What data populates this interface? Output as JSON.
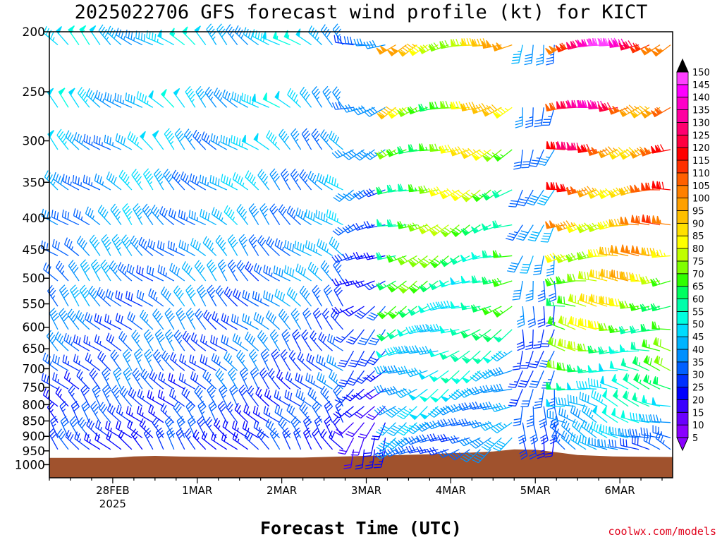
{
  "chart_data": {
    "type": "wind_barbs",
    "title": "2025022706 GFS forecast wind profile (kt) for KICT",
    "xlabel": "Forecast Time (UTC)",
    "credit": "coolwx.com/models",
    "units": "kt",
    "y_axis": {
      "scale": "log-pressure",
      "inverted": true,
      "ticks": [
        200,
        250,
        300,
        350,
        400,
        450,
        500,
        550,
        600,
        650,
        700,
        750,
        800,
        850,
        900,
        950,
        1000
      ],
      "range": [
        200,
        1050
      ]
    },
    "x_axis": {
      "ticks": [
        {
          "label": "28FEB",
          "sublabel": "2025",
          "hours_after_init": 18
        },
        {
          "label": "1MAR",
          "sublabel": "",
          "hours_after_init": 42
        },
        {
          "label": "2MAR",
          "sublabel": "",
          "hours_after_init": 66
        },
        {
          "label": "3MAR",
          "sublabel": "",
          "hours_after_init": 90
        },
        {
          "label": "4MAR",
          "sublabel": "",
          "hours_after_init": 114
        },
        {
          "label": "5MAR",
          "sublabel": "",
          "hours_after_init": 138
        },
        {
          "label": "6MAR",
          "sublabel": "",
          "hours_after_init": 162
        }
      ],
      "range_hours": [
        0,
        177
      ]
    },
    "colorbar": {
      "levels": [
        5,
        10,
        15,
        20,
        25,
        30,
        35,
        40,
        45,
        50,
        55,
        60,
        65,
        70,
        75,
        80,
        85,
        90,
        95,
        100,
        105,
        110,
        115,
        120,
        125,
        130,
        135,
        140,
        145,
        150
      ],
      "colors": [
        "#8a00ff",
        "#6a00ff",
        "#3a00ff",
        "#0000ff",
        "#0030ff",
        "#0060ff",
        "#0090ff",
        "#00b4ff",
        "#00dcff",
        "#00ffe0",
        "#00ffaa",
        "#00ff60",
        "#30ff00",
        "#80ff00",
        "#c0ff00",
        "#ffff00",
        "#ffe000",
        "#ffc000",
        "#ffa000",
        "#ff8000",
        "#ff6000",
        "#ff3000",
        "#ff0000",
        "#ff0040",
        "#ff0070",
        "#ff00a0",
        "#ff00c8",
        "#ff00ff",
        "#ff40ff",
        "#ff80ff"
      ]
    },
    "terrain": {
      "color": "#a0522d",
      "surface_pressure": [
        {
          "h": 0,
          "p": 975
        },
        {
          "h": 18,
          "p": 975
        },
        {
          "h": 24,
          "p": 970
        },
        {
          "h": 30,
          "p": 968
        },
        {
          "h": 36,
          "p": 970
        },
        {
          "h": 48,
          "p": 972
        },
        {
          "h": 60,
          "p": 974
        },
        {
          "h": 72,
          "p": 974
        },
        {
          "h": 84,
          "p": 970
        },
        {
          "h": 96,
          "p": 966
        },
        {
          "h": 108,
          "p": 962
        },
        {
          "h": 114,
          "p": 958
        },
        {
          "h": 120,
          "p": 956
        },
        {
          "h": 126,
          "p": 952
        },
        {
          "h": 132,
          "p": 945
        },
        {
          "h": 138,
          "p": 946
        },
        {
          "h": 144,
          "p": 955
        },
        {
          "h": 150,
          "p": 965
        },
        {
          "h": 160,
          "p": 970
        },
        {
          "h": 177,
          "p": 972
        }
      ]
    },
    "wind_levels": [
      210,
      265,
      310,
      360,
      410,
      460,
      505,
      555,
      605,
      655,
      705,
      755,
      805,
      855,
      905,
      945,
      975
    ],
    "time_step_hours": 3,
    "regimes": [
      {
        "h0": 0,
        "h1": 84,
        "upper_speed": 45,
        "upper_dir": 310,
        "lower_speed": 25,
        "lower_dir": 320
      },
      {
        "h0": 84,
        "h1": 96,
        "upper_speed": 35,
        "upper_dir": 260,
        "lower_speed": 20,
        "lower_dir": 200
      },
      {
        "h0": 96,
        "h1": 132,
        "upper_speed": 85,
        "upper_dir": 250,
        "lower_speed": 30,
        "lower_dir": 240
      },
      {
        "h0": 132,
        "h1": 144,
        "upper_speed": 40,
        "upper_dir": 200,
        "lower_speed": 25,
        "lower_dir": 180
      },
      {
        "h0": 144,
        "h1": 177,
        "upper_speed": 125,
        "upper_dir": 250,
        "lower_speed": 30,
        "lower_dir": 300
      }
    ]
  }
}
